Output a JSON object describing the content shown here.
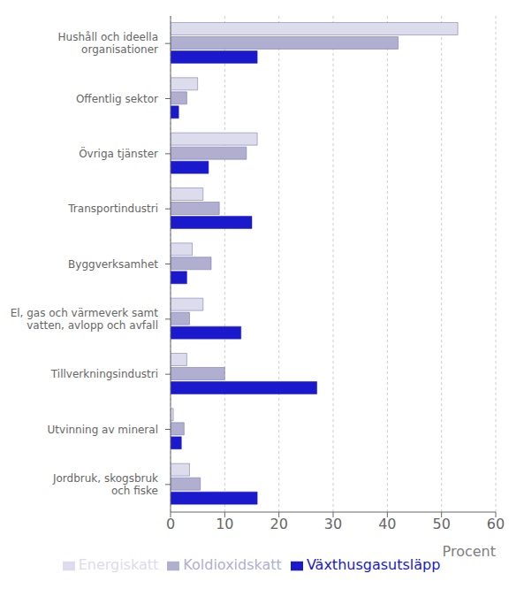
{
  "chart_data": {
    "type": "bar",
    "orientation": "horizontal",
    "categories": [
      "Hushåll och ideella\norganisationer",
      "Offentlig sektor",
      "Övriga tjänster",
      "Transportindustri",
      "Byggverksamhet",
      "El, gas och värmeverk samt\nvatten, avlopp och avfall",
      "Tillverkningsindustri",
      "Utvinning av mineral",
      "Jordbruk, skogsbruk\noch fiske"
    ],
    "series": [
      {
        "name": "Energiskatt",
        "color": "#dcdcec",
        "values": [
          53,
          5,
          16,
          6,
          4,
          6,
          3,
          0.5,
          3.5
        ]
      },
      {
        "name": "Koldioxidskatt",
        "color": "#b0afd0",
        "values": [
          42,
          3,
          14,
          9,
          7.5,
          3.5,
          10,
          2.5,
          5.5
        ]
      },
      {
        "name": "Växthusgasutsläpp",
        "color": "#1a1acc",
        "values": [
          16,
          1.5,
          7,
          15,
          3,
          13,
          27,
          2,
          16
        ]
      }
    ],
    "xlabel": "Procent",
    "xlim": [
      0,
      60
    ],
    "xticks": [
      0,
      10,
      20,
      30,
      40,
      50,
      60
    ],
    "grid": true,
    "legend": "bottom"
  }
}
